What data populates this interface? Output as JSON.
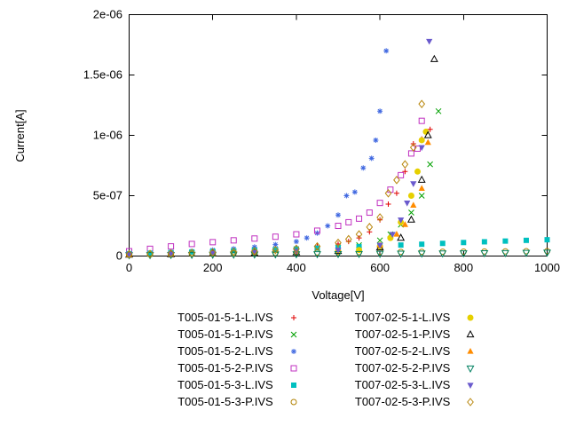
{
  "page": {
    "background": "#ffffff"
  },
  "chart_data": {
    "type": "scatter",
    "title": "",
    "xlabel": "Voltage[V]",
    "ylabel": "Current[A]",
    "xlim": [
      0,
      1000
    ],
    "ylim": [
      0,
      2e-06
    ],
    "xticks": [
      0,
      200,
      400,
      600,
      800,
      1000
    ],
    "xtick_labels": [
      "0",
      "200",
      "400",
      "600",
      "800",
      "1000"
    ],
    "yticks": [
      0,
      5e-07,
      1e-06,
      1.5e-06,
      2e-06
    ],
    "ytick_labels": [
      "0",
      "5e-07",
      "1e-06",
      "1.5e-06",
      "2e-06"
    ],
    "grid": false,
    "legend": {
      "position": "below-chart",
      "columns": 2
    },
    "series": [
      {
        "name": "T005-01-5-1-L.IVS",
        "marker": "plus",
        "color": "#e00000",
        "points": [
          [
            0,
            2e-08
          ],
          [
            50,
            2.5e-08
          ],
          [
            100,
            3e-08
          ],
          [
            150,
            3.5e-08
          ],
          [
            200,
            4e-08
          ],
          [
            250,
            4.5e-08
          ],
          [
            300,
            5e-08
          ],
          [
            350,
            6e-08
          ],
          [
            400,
            7e-08
          ],
          [
            450,
            8.5e-08
          ],
          [
            500,
            1e-07
          ],
          [
            525,
            1.2e-07
          ],
          [
            550,
            1.5e-07
          ],
          [
            575,
            2e-07
          ],
          [
            600,
            3e-07
          ],
          [
            620,
            4.3e-07
          ],
          [
            640,
            5.2e-07
          ],
          [
            660,
            7e-07
          ],
          [
            680,
            9.3e-07
          ],
          [
            700,
            9.7e-07
          ],
          [
            720,
            1.05e-06
          ]
        ]
      },
      {
        "name": "T005-01-5-1-P.IVS",
        "marker": "cross",
        "color": "#00a000",
        "points": [
          [
            0,
            1.5e-08
          ],
          [
            50,
            1.8e-08
          ],
          [
            100,
            2.2e-08
          ],
          [
            150,
            2.6e-08
          ],
          [
            200,
            3e-08
          ],
          [
            250,
            3.5e-08
          ],
          [
            300,
            4e-08
          ],
          [
            350,
            4.5e-08
          ],
          [
            400,
            5e-08
          ],
          [
            450,
            6e-08
          ],
          [
            500,
            7e-08
          ],
          [
            550,
            9e-08
          ],
          [
            600,
            1.3e-07
          ],
          [
            625,
            1.8e-07
          ],
          [
            650,
            2.6e-07
          ],
          [
            675,
            3.6e-07
          ],
          [
            700,
            5e-07
          ],
          [
            720,
            7.6e-07
          ],
          [
            740,
            1.2e-06
          ]
        ]
      },
      {
        "name": "T005-01-5-2-L.IVS",
        "marker": "asterisk",
        "color": "#4169e1",
        "points": [
          [
            0,
            2e-08
          ],
          [
            50,
            2.5e-08
          ],
          [
            100,
            3.2e-08
          ],
          [
            150,
            4e-08
          ],
          [
            200,
            5e-08
          ],
          [
            250,
            6e-08
          ],
          [
            300,
            7.5e-08
          ],
          [
            350,
            9.5e-08
          ],
          [
            400,
            1.2e-07
          ],
          [
            425,
            1.5e-07
          ],
          [
            450,
            1.9e-07
          ],
          [
            475,
            2.5e-07
          ],
          [
            500,
            3.4e-07
          ],
          [
            520,
            5e-07
          ],
          [
            540,
            5.3e-07
          ],
          [
            560,
            7.3e-07
          ],
          [
            580,
            8.1e-07
          ],
          [
            590,
            9.6e-07
          ],
          [
            600,
            1.2e-06
          ],
          [
            615,
            1.7e-06
          ]
        ]
      },
      {
        "name": "T005-01-5-2-P.IVS",
        "marker": "open-square",
        "color": "#c030c0",
        "points": [
          [
            0,
            4e-08
          ],
          [
            50,
            6e-08
          ],
          [
            100,
            8e-08
          ],
          [
            150,
            1e-07
          ],
          [
            200,
            1.15e-07
          ],
          [
            250,
            1.3e-07
          ],
          [
            300,
            1.45e-07
          ],
          [
            350,
            1.6e-07
          ],
          [
            400,
            1.8e-07
          ],
          [
            450,
            2.1e-07
          ],
          [
            500,
            2.5e-07
          ],
          [
            525,
            2.8e-07
          ],
          [
            550,
            3.1e-07
          ],
          [
            575,
            3.6e-07
          ],
          [
            600,
            4.4e-07
          ],
          [
            625,
            5.5e-07
          ],
          [
            650,
            6.7e-07
          ],
          [
            675,
            8.5e-07
          ],
          [
            690,
            8.9e-07
          ],
          [
            700,
            1.12e-06
          ]
        ]
      },
      {
        "name": "T005-01-5-3-L.IVS",
        "marker": "filled-square",
        "color": "#00c0c0",
        "points": [
          [
            0,
            2e-08
          ],
          [
            50,
            2.4e-08
          ],
          [
            100,
            2.9e-08
          ],
          [
            150,
            3.4e-08
          ],
          [
            200,
            3.9e-08
          ],
          [
            250,
            4.4e-08
          ],
          [
            300,
            4.9e-08
          ],
          [
            350,
            5.4e-08
          ],
          [
            400,
            5.9e-08
          ],
          [
            450,
            6.5e-08
          ],
          [
            500,
            7.1e-08
          ],
          [
            550,
            7.7e-08
          ],
          [
            600,
            8.4e-08
          ],
          [
            650,
            9.1e-08
          ],
          [
            700,
            9.8e-08
          ],
          [
            750,
            1.05e-07
          ],
          [
            800,
            1.12e-07
          ],
          [
            850,
            1.18e-07
          ],
          [
            900,
            1.24e-07
          ],
          [
            950,
            1.3e-07
          ],
          [
            1000,
            1.35e-07
          ]
        ]
      },
      {
        "name": "T005-01-5-3-P.IVS",
        "marker": "open-circle",
        "color": "#b08000",
        "points": [
          [
            0,
            1.2e-08
          ],
          [
            50,
            1.4e-08
          ],
          [
            100,
            1.6e-08
          ],
          [
            150,
            1.8e-08
          ],
          [
            200,
            2e-08
          ],
          [
            250,
            2.2e-08
          ],
          [
            300,
            2.4e-08
          ],
          [
            350,
            2.6e-08
          ],
          [
            400,
            2.8e-08
          ],
          [
            450,
            3e-08
          ],
          [
            500,
            3.1e-08
          ],
          [
            550,
            3.2e-08
          ],
          [
            600,
            3.3e-08
          ],
          [
            650,
            3.4e-08
          ],
          [
            700,
            3.5e-08
          ],
          [
            750,
            3.6e-08
          ],
          [
            800,
            3.7e-08
          ],
          [
            850,
            3.8e-08
          ],
          [
            900,
            3.9e-08
          ],
          [
            950,
            4e-08
          ],
          [
            1000,
            4.1e-08
          ]
        ]
      },
      {
        "name": "T007-02-5-1-L.IVS",
        "marker": "filled-circle",
        "color": "#e6d000",
        "points": [
          [
            0,
            1e-08
          ],
          [
            100,
            1.5e-08
          ],
          [
            200,
            2e-08
          ],
          [
            300,
            2.5e-08
          ],
          [
            400,
            3e-08
          ],
          [
            500,
            4e-08
          ],
          [
            550,
            5e-08
          ],
          [
            600,
            8e-08
          ],
          [
            625,
            1.5e-07
          ],
          [
            650,
            2.8e-07
          ],
          [
            675,
            5e-07
          ],
          [
            690,
            7e-07
          ],
          [
            700,
            9.6e-07
          ],
          [
            710,
            1.03e-06
          ]
        ]
      },
      {
        "name": "T007-02-5-1-P.IVS",
        "marker": "open-triangle",
        "color": "#000000",
        "points": [
          [
            0,
            1e-08
          ],
          [
            100,
            1.4e-08
          ],
          [
            200,
            1.9e-08
          ],
          [
            300,
            2.4e-08
          ],
          [
            400,
            3e-08
          ],
          [
            500,
            4e-08
          ],
          [
            600,
            7e-08
          ],
          [
            650,
            1.5e-07
          ],
          [
            675,
            3e-07
          ],
          [
            700,
            6.3e-07
          ],
          [
            715,
            1e-06
          ],
          [
            730,
            1.63e-06
          ]
        ]
      },
      {
        "name": "T007-02-5-2-L.IVS",
        "marker": "filled-triangle",
        "color": "#ff8c00",
        "points": [
          [
            0,
            1e-08
          ],
          [
            100,
            1.5e-08
          ],
          [
            200,
            2.1e-08
          ],
          [
            300,
            2.8e-08
          ],
          [
            400,
            3.6e-08
          ],
          [
            500,
            5e-08
          ],
          [
            600,
            9e-08
          ],
          [
            640,
            1.8e-07
          ],
          [
            660,
            2.6e-07
          ],
          [
            680,
            4.2e-07
          ],
          [
            700,
            5.6e-07
          ],
          [
            715,
            9.4e-07
          ]
        ]
      },
      {
        "name": "T007-02-5-2-P.IVS",
        "marker": "open-inv-triangle",
        "color": "#008060",
        "points": [
          [
            0,
            8e-09
          ],
          [
            50,
            9e-09
          ],
          [
            100,
            1e-08
          ],
          [
            150,
            1.1e-08
          ],
          [
            200,
            1.2e-08
          ],
          [
            250,
            1.3e-08
          ],
          [
            300,
            1.4e-08
          ],
          [
            350,
            1.5e-08
          ],
          [
            400,
            1.6e-08
          ],
          [
            450,
            1.7e-08
          ],
          [
            500,
            1.8e-08
          ],
          [
            550,
            1.9e-08
          ],
          [
            600,
            2e-08
          ],
          [
            650,
            2.1e-08
          ],
          [
            700,
            2.2e-08
          ],
          [
            750,
            2.3e-08
          ],
          [
            800,
            2.4e-08
          ],
          [
            850,
            2.5e-08
          ],
          [
            900,
            2.6e-08
          ],
          [
            950,
            2.8e-08
          ],
          [
            1000,
            3e-08
          ]
        ]
      },
      {
        "name": "T007-02-5-3-L.IVS",
        "marker": "filled-inv-triangle",
        "color": "#6a5acd",
        "points": [
          [
            0,
            1e-08
          ],
          [
            100,
            1.8e-08
          ],
          [
            200,
            2.4e-08
          ],
          [
            300,
            3e-08
          ],
          [
            400,
            4e-08
          ],
          [
            500,
            5e-08
          ],
          [
            600,
            9e-08
          ],
          [
            630,
            1.8e-07
          ],
          [
            650,
            3e-07
          ],
          [
            665,
            4.4e-07
          ],
          [
            680,
            6e-07
          ],
          [
            700,
            9e-07
          ],
          [
            718,
            1.78e-06
          ]
        ]
      },
      {
        "name": "T007-02-5-3-P.IVS",
        "marker": "open-diamond",
        "color": "#b8860b",
        "points": [
          [
            0,
            1.5e-08
          ],
          [
            50,
            1.8e-08
          ],
          [
            100,
            2.2e-08
          ],
          [
            150,
            2.6e-08
          ],
          [
            200,
            3e-08
          ],
          [
            250,
            3.5e-08
          ],
          [
            300,
            4e-08
          ],
          [
            350,
            5e-08
          ],
          [
            400,
            6e-08
          ],
          [
            450,
            8e-08
          ],
          [
            500,
            1.1e-07
          ],
          [
            525,
            1.4e-07
          ],
          [
            550,
            1.8e-07
          ],
          [
            575,
            2.4e-07
          ],
          [
            600,
            3.2e-07
          ],
          [
            620,
            5.2e-07
          ],
          [
            640,
            6.3e-07
          ],
          [
            660,
            7.6e-07
          ],
          [
            680,
            9e-07
          ],
          [
            700,
            1.26e-06
          ]
        ]
      }
    ]
  }
}
